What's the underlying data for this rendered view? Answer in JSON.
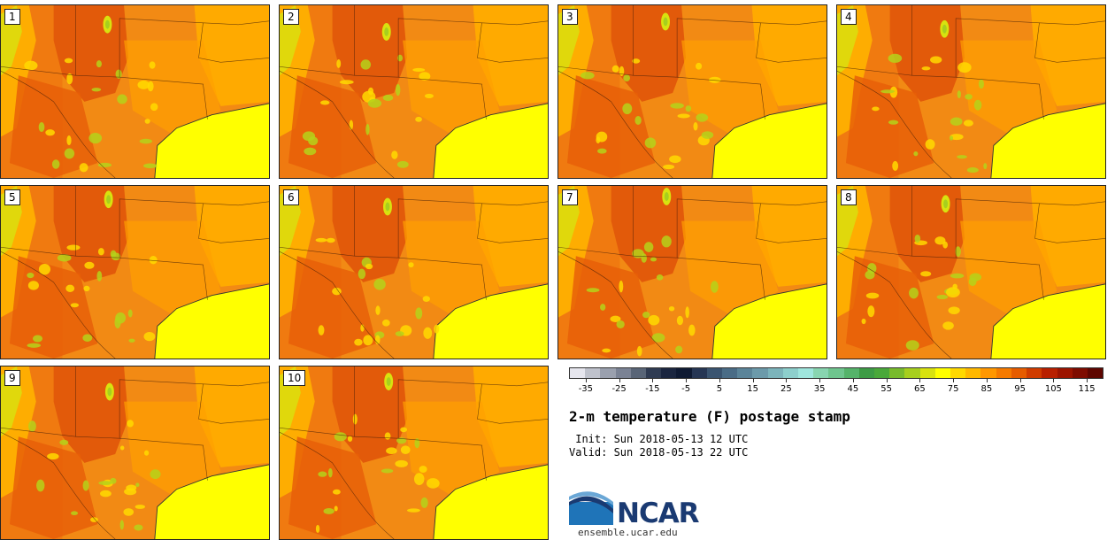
{
  "panels": [
    {
      "label": "1"
    },
    {
      "label": "2"
    },
    {
      "label": "3"
    },
    {
      "label": "4"
    },
    {
      "label": "5"
    },
    {
      "label": "6"
    },
    {
      "label": "7"
    },
    {
      "label": "8"
    },
    {
      "label": "9"
    },
    {
      "label": "10"
    }
  ],
  "colorbar": {
    "colors": [
      "#e6e6ee",
      "#bfc2cc",
      "#9aa0ae",
      "#7a8294",
      "#596577",
      "#2f3b52",
      "#1b2640",
      "#0f1a33",
      "#263654",
      "#3a5470",
      "#4a6c86",
      "#5b8499",
      "#6c9aaa",
      "#7cb4bb",
      "#8dcfcc",
      "#9fe6dd",
      "#88d5b0",
      "#6fc58e",
      "#55b36a",
      "#3d9b45",
      "#4aa83a",
      "#78bb2c",
      "#a7cf1e",
      "#d8e20f",
      "#ffff00",
      "#ffd900",
      "#ffb800",
      "#ff9700",
      "#f57a00",
      "#e65c00",
      "#d03c00",
      "#b82000",
      "#9c1400",
      "#7e0c00",
      "#5e0600"
    ],
    "tick_labels": [
      "-35",
      "-25",
      "-15",
      "-5",
      "5",
      "15",
      "25",
      "35",
      "45",
      "55",
      "65",
      "75",
      "85",
      "95",
      "105",
      "115"
    ],
    "min": -40,
    "max": 120
  },
  "title": "2-m temperature (F) postage stamp",
  "init_line": " Init: Sun 2018-05-13 12 UTC",
  "valid_line": "Valid: Sun 2018-05-13 22 UTC",
  "logo_text": "NCAR",
  "url": "ensemble.ucar.edu"
}
